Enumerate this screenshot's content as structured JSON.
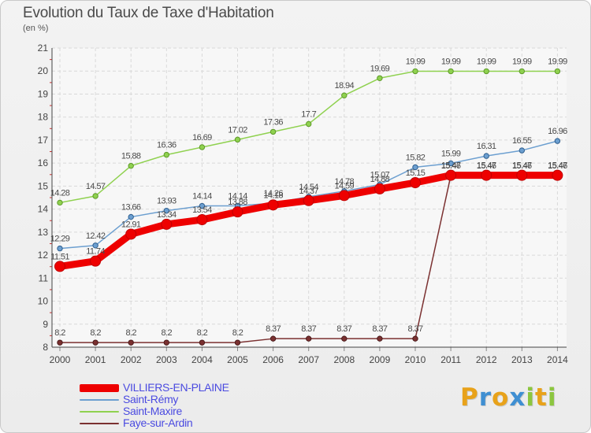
{
  "header": {
    "title": "Evolution du Taux de Taxe d'Habitation",
    "subtitle": "(en %)"
  },
  "brand": {
    "letters": [
      "P",
      "r",
      "o",
      "x",
      "i",
      "t",
      "i"
    ],
    "colors": [
      "#e8a21a",
      "#3f8fd2",
      "#e8a21a",
      "#3f8fd2",
      "#8cc63f",
      "#e8a21a",
      "#8cc63f"
    ]
  },
  "chart_data": {
    "type": "line",
    "title": "Evolution du Taux de Taxe d'Habitation",
    "ylabel": "(en %)",
    "xlabel": "",
    "x": [
      "2000",
      "2001",
      "2002",
      "2003",
      "2004",
      "2005",
      "2006",
      "2007",
      "2008",
      "2009",
      "2010",
      "2011",
      "2012",
      "2013",
      "2014"
    ],
    "ylim": [
      8,
      21
    ],
    "yticks": [
      8,
      9,
      10,
      11,
      12,
      13,
      14,
      15,
      16,
      17,
      18,
      19,
      20,
      21
    ],
    "grid": true,
    "legend_position": "bottom-left",
    "series": [
      {
        "name": "VILLIERS-EN-PLAINE",
        "color": "#ee0000",
        "values": [
          11.51,
          11.74,
          12.91,
          13.34,
          13.54,
          13.88,
          14.18,
          14.37,
          14.59,
          14.88,
          15.15,
          15.47,
          15.47,
          15.47,
          15.47
        ],
        "labels": [
          "11.51",
          "11.74",
          "12.91",
          "13.34",
          "13.54",
          "13.88",
          "14.18",
          "14.37",
          "14.59",
          "14.88",
          "15.15",
          "15.47",
          "15.47",
          "15.47",
          "15.47"
        ]
      },
      {
        "name": "Saint-Rémy",
        "color": "#6c9fd0",
        "values": [
          12.29,
          12.42,
          13.66,
          13.93,
          14.14,
          14.14,
          14.26,
          14.54,
          14.78,
          15.07,
          15.82,
          15.99,
          16.31,
          16.55,
          16.96
        ],
        "labels": [
          "12.29",
          "12.42",
          "13.66",
          "13.93",
          "14.14",
          "14.14",
          "14.26",
          "14.54",
          "14.78",
          "15.07",
          "15.82",
          "15.99",
          "16.31",
          "16.55",
          "16.96"
        ]
      },
      {
        "name": "Saint-Maxire",
        "color": "#8fd14f",
        "values": [
          14.28,
          14.57,
          15.88,
          16.36,
          16.69,
          17.02,
          17.36,
          17.7,
          18.94,
          19.69,
          19.99,
          19.99,
          19.99,
          19.99,
          19.99
        ],
        "labels": [
          "14.28",
          "14.57",
          "15.88",
          "16.36",
          "16.69",
          "17.02",
          "17.36",
          "17.7",
          "18.94",
          "19.69",
          "19.99",
          "19.99",
          "19.99",
          "19.99",
          "19.99"
        ]
      },
      {
        "name": "Faye-sur-Ardin",
        "color": "#7b3131",
        "values": [
          8.2,
          8.2,
          8.2,
          8.2,
          8.2,
          8.2,
          8.37,
          8.37,
          8.37,
          8.37,
          8.37,
          15.46,
          15.46,
          15.46,
          15.46
        ],
        "labels": [
          "8.2",
          "8.2",
          "8.2",
          "8.2",
          "8.2",
          "8.2",
          "8.37",
          "8.37",
          "8.37",
          "8.37",
          "8.37",
          "15.46",
          "15.46",
          "15.46",
          "15.46"
        ]
      }
    ]
  }
}
